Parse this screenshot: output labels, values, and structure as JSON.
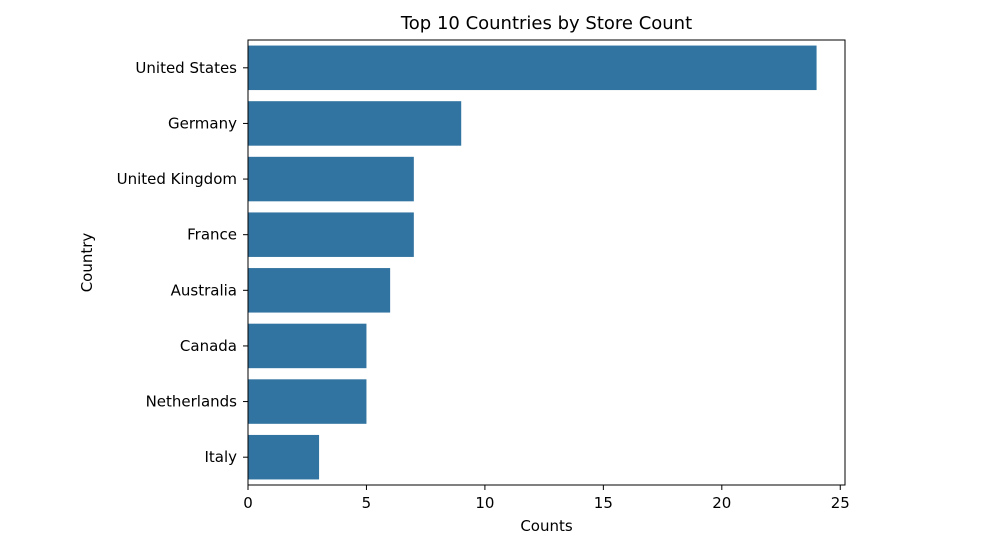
{
  "chart_data": {
    "type": "bar",
    "orientation": "horizontal",
    "title": "Top 10 Countries by Store Count",
    "xlabel": "Counts",
    "ylabel": "Country",
    "categories": [
      "United States",
      "Germany",
      "United Kingdom",
      "France",
      "Australia",
      "Canada",
      "Netherlands",
      "Italy"
    ],
    "values": [
      24,
      9,
      7,
      7,
      6,
      5,
      5,
      3
    ],
    "xlim": [
      0,
      25.2
    ],
    "xticks": [
      0,
      5,
      10,
      15,
      20,
      25
    ],
    "grid": false,
    "bar_color": "#3274a1"
  }
}
